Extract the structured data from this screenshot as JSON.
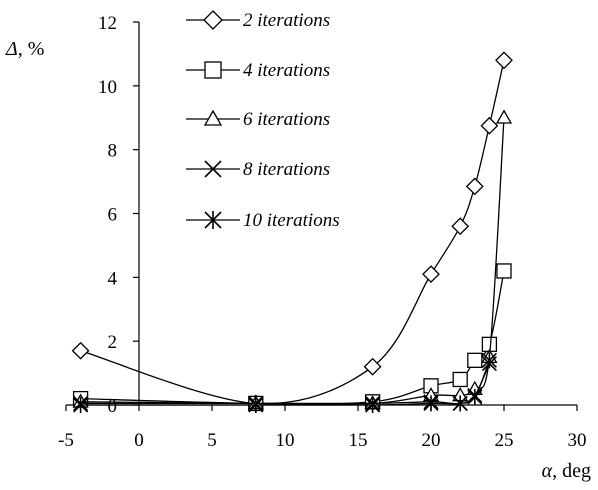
{
  "chart_data": {
    "type": "line",
    "title": "",
    "xlabel_symbol": "α",
    "xlabel_unit": ", deg",
    "ylabel_symbol": "Δ",
    "ylabel_unit": ", %",
    "xlim": [
      -5,
      30
    ],
    "ylim": [
      0,
      12
    ],
    "xticks": [
      -5,
      0,
      5,
      10,
      15,
      20,
      25,
      30
    ],
    "yticks": [
      0,
      2,
      4,
      6,
      8,
      10,
      12
    ],
    "grid": false,
    "legend_position": "top-center",
    "series": [
      {
        "name": "2 iterations",
        "marker": "diamond",
        "x": [
          -4,
          8,
          16,
          20,
          22,
          23,
          24,
          25
        ],
        "y": [
          1.7,
          0.05,
          1.2,
          4.1,
          5.6,
          6.85,
          8.75,
          10.8
        ]
      },
      {
        "name": "4 iterations",
        "marker": "square",
        "x": [
          -4,
          8,
          16,
          20,
          22,
          23,
          24,
          25
        ],
        "y": [
          0.2,
          0.05,
          0.1,
          0.6,
          0.8,
          1.4,
          1.9,
          4.2
        ]
      },
      {
        "name": "6 iterations",
        "marker": "triangle",
        "x": [
          -4,
          8,
          16,
          20,
          22,
          23,
          24,
          25
        ],
        "y": [
          0.1,
          0.05,
          0.05,
          0.3,
          0.3,
          0.5,
          1.5,
          9.0
        ]
      },
      {
        "name": "8 iterations",
        "marker": "x",
        "x": [
          -4,
          8,
          16,
          20,
          22,
          23,
          24
        ],
        "y": [
          0.05,
          0.05,
          0.05,
          0.1,
          0.05,
          0.3,
          1.3
        ]
      },
      {
        "name": "10 iterations",
        "marker": "asterisk",
        "x": [
          -4,
          8,
          16,
          20,
          22,
          23,
          24
        ],
        "y": [
          0.0,
          0.0,
          0.0,
          0.05,
          0.05,
          0.25,
          1.4
        ]
      }
    ]
  }
}
